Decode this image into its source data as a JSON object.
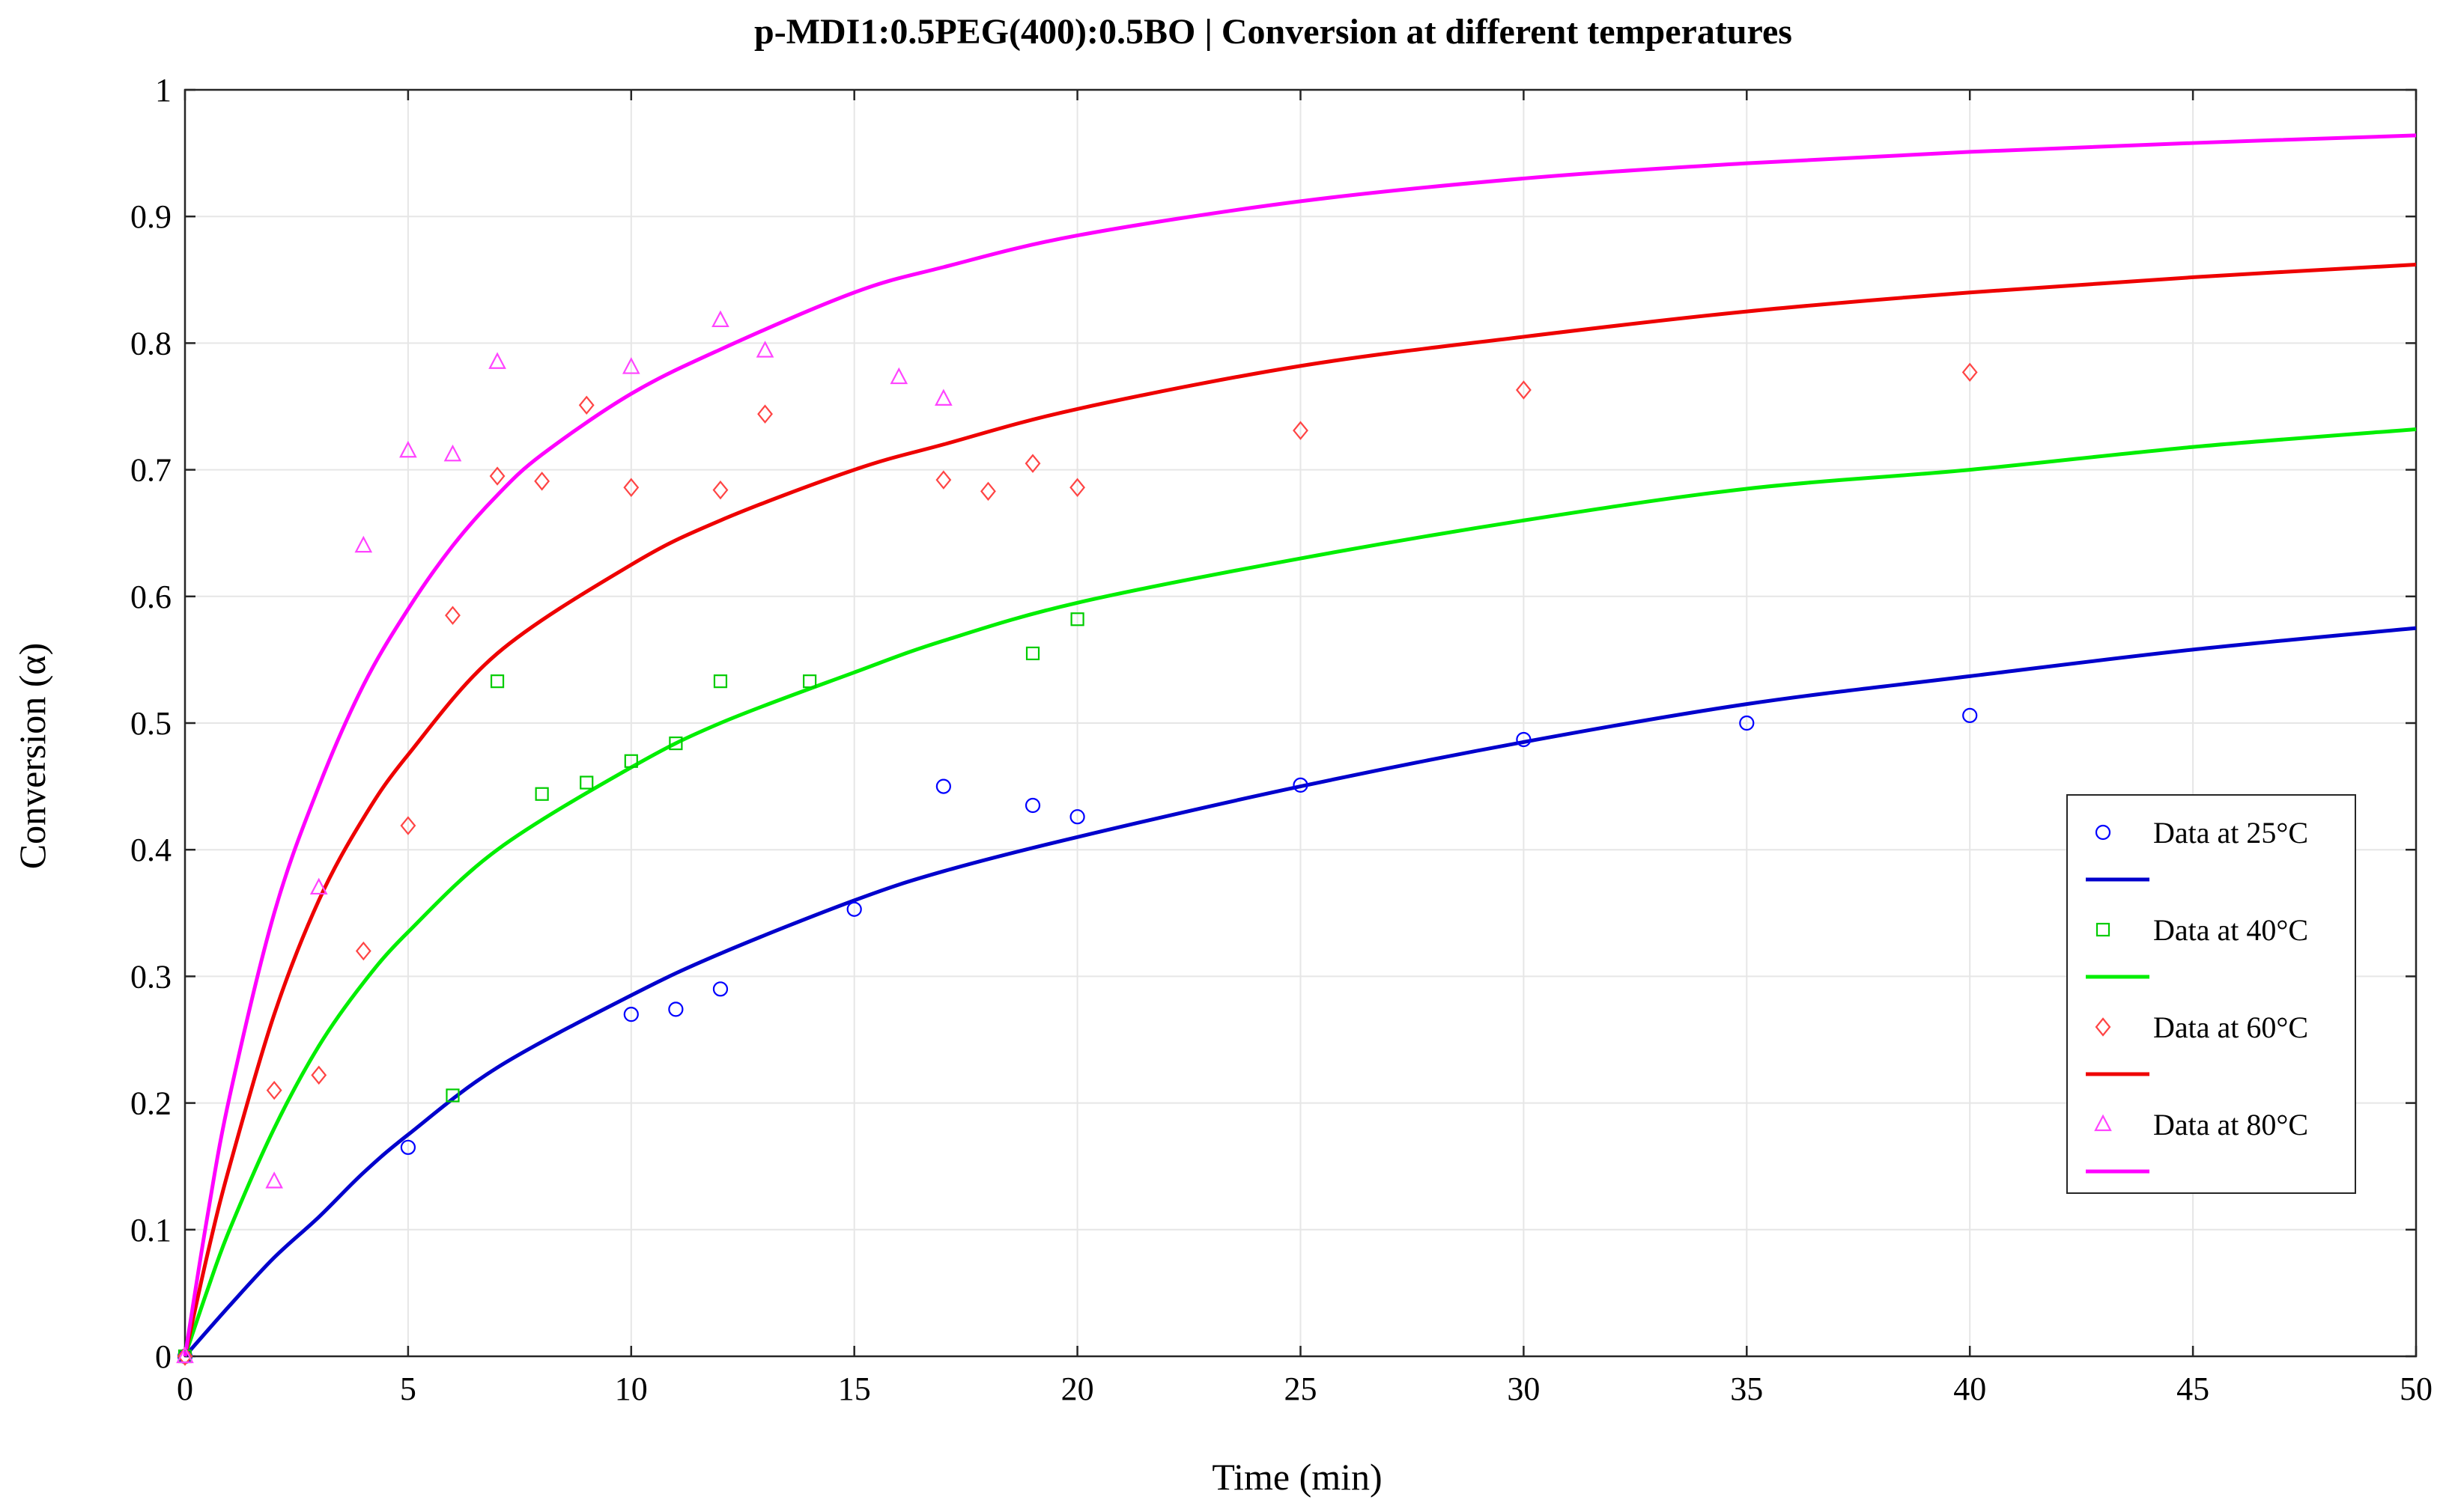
{
  "chart_data": {
    "type": "scatter",
    "title": "p-MDI1:0.5PEG(400):0.5BO | Conversion at different temperatures",
    "xlabel": "Time (min)",
    "ylabel": "Conversion (α)",
    "xlim": [
      0,
      50
    ],
    "ylim": [
      0,
      1
    ],
    "xticks": [
      0,
      5,
      10,
      15,
      20,
      25,
      30,
      35,
      40,
      45,
      50
    ],
    "yticks": [
      0,
      0.1,
      0.2,
      0.3,
      0.4,
      0.5,
      0.6,
      0.7,
      0.8,
      0.9,
      1
    ],
    "xtick_labels": [
      "0",
      "5",
      "10",
      "15",
      "20",
      "25",
      "30",
      "35",
      "40",
      "45",
      "50"
    ],
    "ytick_labels": [
      "0",
      "0.1",
      "0.2",
      "0.3",
      "0.4",
      "0.5",
      "0.6",
      "0.7",
      "0.8",
      "0.9",
      "1"
    ],
    "grid": true,
    "legend_position": "right",
    "series": [
      {
        "name": "Data at 25°C",
        "color": "#0000ff",
        "marker": "circle",
        "points": [
          [
            0,
            0
          ],
          [
            5,
            0.165
          ],
          [
            10,
            0.27
          ],
          [
            11,
            0.274
          ],
          [
            12,
            0.29
          ],
          [
            15,
            0.353
          ],
          [
            17,
            0.45
          ],
          [
            19,
            0.435
          ],
          [
            20,
            0.426
          ],
          [
            25,
            0.451
          ],
          [
            30,
            0.487
          ],
          [
            35,
            0.5
          ],
          [
            40,
            0.506
          ]
        ],
        "fit": {
          "color": "#0000cc",
          "points": [
            [
              0,
              0
            ],
            [
              1,
              0.04
            ],
            [
              2,
              0.078
            ],
            [
              3,
              0.11
            ],
            [
              4,
              0.145
            ],
            [
              5,
              0.175
            ],
            [
              7,
              0.228
            ],
            [
              10,
              0.285
            ],
            [
              12,
              0.318
            ],
            [
              15,
              0.36
            ],
            [
              17,
              0.383
            ],
            [
              20,
              0.41
            ],
            [
              25,
              0.45
            ],
            [
              30,
              0.485
            ],
            [
              35,
              0.515
            ],
            [
              40,
              0.537
            ],
            [
              45,
              0.558
            ],
            [
              50,
              0.575
            ]
          ]
        }
      },
      {
        "name": "Data at 40°C",
        "color": "#00cc00",
        "marker": "square",
        "points": [
          [
            0,
            0
          ],
          [
            6,
            0.206
          ],
          [
            7,
            0.533
          ],
          [
            8,
            0.444
          ],
          [
            9,
            0.453
          ],
          [
            10,
            0.47
          ],
          [
            11,
            0.484
          ],
          [
            12,
            0.533
          ],
          [
            14,
            0.533
          ],
          [
            19,
            0.555
          ],
          [
            20,
            0.582
          ]
        ],
        "fit": {
          "color": "#00ee00",
          "points": [
            [
              0,
              0
            ],
            [
              0.5,
              0.052
            ],
            [
              1,
              0.1
            ],
            [
              2,
              0.18
            ],
            [
              3,
              0.245
            ],
            [
              4,
              0.295
            ],
            [
              5,
              0.335
            ],
            [
              7,
              0.4
            ],
            [
              10,
              0.465
            ],
            [
              12,
              0.5
            ],
            [
              15,
              0.54
            ],
            [
              17,
              0.565
            ],
            [
              20,
              0.595
            ],
            [
              25,
              0.63
            ],
            [
              30,
              0.66
            ],
            [
              35,
              0.685
            ],
            [
              40,
              0.7
            ],
            [
              45,
              0.718
            ],
            [
              50,
              0.732
            ]
          ]
        }
      },
      {
        "name": "Data at 60°C",
        "color": "#ff4444",
        "marker": "diamond",
        "points": [
          [
            0,
            0
          ],
          [
            2,
            0.21
          ],
          [
            3,
            0.222
          ],
          [
            4,
            0.32
          ],
          [
            5,
            0.419
          ],
          [
            6,
            0.585
          ],
          [
            7,
            0.695
          ],
          [
            8,
            0.691
          ],
          [
            9,
            0.751
          ],
          [
            10,
            0.686
          ],
          [
            12,
            0.684
          ],
          [
            13,
            0.744
          ],
          [
            17,
            0.692
          ],
          [
            18,
            0.683
          ],
          [
            19,
            0.705
          ],
          [
            20,
            0.686
          ],
          [
            25,
            0.731
          ],
          [
            30,
            0.763
          ],
          [
            40,
            0.777
          ]
        ]
      },
      {
        "name": "",
        "color": "#ee0000",
        "marker": "none",
        "points": [],
        "fit": {
          "color": "#ee0000",
          "points": [
            [
              0,
              0
            ],
            [
              0.5,
              0.08
            ],
            [
              1,
              0.15
            ],
            [
              2,
              0.27
            ],
            [
              3,
              0.36
            ],
            [
              4,
              0.425
            ],
            [
              5,
              0.475
            ],
            [
              7,
              0.555
            ],
            [
              10,
              0.625
            ],
            [
              12,
              0.66
            ],
            [
              15,
              0.7
            ],
            [
              17,
              0.72
            ],
            [
              20,
              0.748
            ],
            [
              25,
              0.782
            ],
            [
              30,
              0.805
            ],
            [
              35,
              0.825
            ],
            [
              40,
              0.84
            ],
            [
              45,
              0.852
            ],
            [
              50,
              0.862
            ]
          ]
        }
      },
      {
        "name": "Data at 80°C",
        "color": "#ff44ff",
        "marker": "triangle",
        "points": [
          [
            0,
            0
          ],
          [
            2,
            0.138
          ],
          [
            3,
            0.37
          ],
          [
            4,
            0.64
          ],
          [
            5,
            0.715
          ],
          [
            6,
            0.712
          ],
          [
            7,
            0.785
          ],
          [
            10,
            0.781
          ],
          [
            12,
            0.818
          ],
          [
            13,
            0.794
          ],
          [
            16,
            0.773
          ],
          [
            17,
            0.756
          ]
        ],
        "fit": {
          "color": "#ff00ff",
          "points": [
            [
              0,
              0
            ],
            [
              0.5,
              0.11
            ],
            [
              1,
              0.205
            ],
            [
              2,
              0.35
            ],
            [
              3,
              0.45
            ],
            [
              4,
              0.53
            ],
            [
              5,
              0.59
            ],
            [
              6,
              0.64
            ],
            [
              7,
              0.68
            ],
            [
              8,
              0.712
            ],
            [
              10,
              0.76
            ],
            [
              12,
              0.795
            ],
            [
              15,
              0.84
            ],
            [
              17,
              0.86
            ],
            [
              20,
              0.885
            ],
            [
              25,
              0.912
            ],
            [
              30,
              0.93
            ],
            [
              35,
              0.942
            ],
            [
              40,
              0.951
            ],
            [
              45,
              0.958
            ],
            [
              50,
              0.964
            ]
          ]
        }
      }
    ],
    "legend_entries": [
      "Data at 25°C",
      "Data at 40°C",
      "Data at 60°C",
      "Data at 80°C"
    ]
  }
}
